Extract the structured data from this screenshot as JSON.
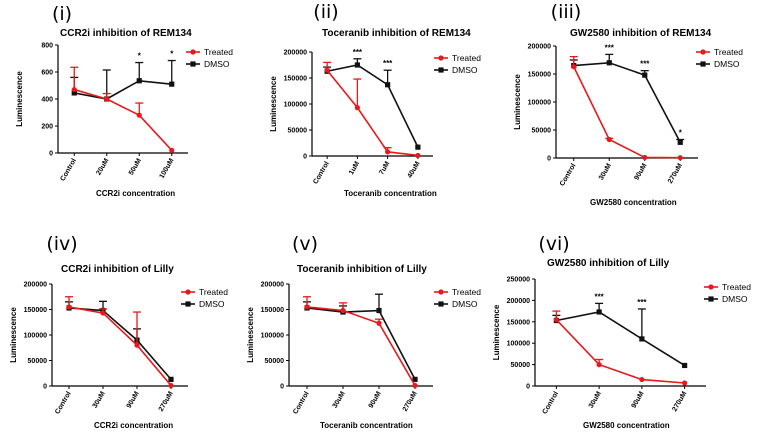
{
  "figure": {
    "colors": {
      "treated": "#e8191c",
      "dmso": "#111111",
      "axis": "#000000"
    }
  },
  "chart_data": [
    {
      "panel": "(i)",
      "type": "line",
      "title": "CCR2i inhibition of REM134",
      "xlabel": "CCR2i concentration",
      "ylabel": "Luminescence",
      "categories": [
        "Control",
        "20uM",
        "50uM",
        "100uM"
      ],
      "ylim": [
        0,
        800
      ],
      "yticks": [
        0,
        200,
        400,
        600,
        800
      ],
      "series": [
        {
          "name": "Treated",
          "values": [
            470,
            400,
            280,
            20
          ],
          "err": [
            165,
            40,
            90,
            0
          ]
        },
        {
          "name": "DMSO",
          "values": [
            445,
            400,
            535,
            510
          ],
          "err": [
            115,
            215,
            135,
            175
          ]
        }
      ],
      "annotations": [
        "",
        "",
        "*",
        "*"
      ]
    },
    {
      "panel": "(ii)",
      "type": "line",
      "title": "Toceranib inhibition of REM134",
      "xlabel": "Toceranib concentration",
      "ylabel": "Luminescence",
      "categories": [
        "Control",
        "1uM",
        "7uM",
        "40uM"
      ],
      "ylim": [
        0,
        200000
      ],
      "yticks": [
        0,
        50000,
        100000,
        150000,
        200000
      ],
      "series": [
        {
          "name": "Treated",
          "values": [
            165000,
            93000,
            8000,
            1000
          ],
          "err": [
            15000,
            55000,
            8000,
            0
          ]
        },
        {
          "name": "DMSO",
          "values": [
            163000,
            175000,
            137000,
            17000
          ],
          "err": [
            8000,
            12000,
            28000,
            0
          ]
        }
      ],
      "annotations": [
        "",
        "***",
        "***",
        ""
      ]
    },
    {
      "panel": "(iii)",
      "type": "line",
      "title": "GW2580 inhibition of REM134",
      "xlabel": "GW2580 concentration",
      "ylabel": "Luminescence",
      "categories": [
        "Control",
        "30uM",
        "90uM",
        "270uM"
      ],
      "ylim": [
        0,
        200000
      ],
      "yticks": [
        0,
        50000,
        100000,
        150000,
        200000
      ],
      "series": [
        {
          "name": "Treated",
          "values": [
            163000,
            33000,
            1000,
            500
          ],
          "err": [
            18000,
            2000,
            0,
            0
          ]
        },
        {
          "name": "DMSO",
          "values": [
            165000,
            170000,
            148000,
            28000
          ],
          "err": [
            10000,
            15000,
            8000,
            5000
          ]
        }
      ],
      "annotations": [
        "",
        "***",
        "***",
        "*"
      ]
    },
    {
      "panel": "(iv)",
      "type": "line",
      "title": "CCR2i inhibition of Lilly",
      "xlabel": "CCR2i concentration",
      "ylabel": "Luminescence",
      "categories": [
        "Control",
        "30uM",
        "90uM",
        "270uM"
      ],
      "ylim": [
        0,
        200000
      ],
      "yticks": [
        0,
        50000,
        100000,
        150000,
        200000
      ],
      "series": [
        {
          "name": "Treated",
          "values": [
            155000,
            143000,
            80000,
            1000
          ],
          "err": [
            20000,
            8000,
            65000,
            0
          ]
        },
        {
          "name": "DMSO",
          "values": [
            153000,
            148000,
            90000,
            13000
          ],
          "err": [
            12000,
            18000,
            22000,
            0
          ]
        }
      ],
      "annotations": [
        "",
        "",
        "",
        ""
      ]
    },
    {
      "panel": "(v)",
      "type": "line",
      "title": "Toceranib inhibition of Lilly",
      "xlabel": "Toceranib concentration",
      "ylabel": "Luminescence",
      "categories": [
        "Control",
        "30uM",
        "90uM",
        "270uM"
      ],
      "ylim": [
        0,
        200000
      ],
      "yticks": [
        0,
        50000,
        100000,
        150000,
        200000
      ],
      "series": [
        {
          "name": "Treated",
          "values": [
            155000,
            148000,
            123000,
            1000
          ],
          "err": [
            20000,
            15000,
            8000,
            0
          ]
        },
        {
          "name": "DMSO",
          "values": [
            153000,
            145000,
            148000,
            13000
          ],
          "err": [
            12000,
            12000,
            32000,
            0
          ]
        }
      ],
      "annotations": [
        "",
        "",
        "",
        ""
      ]
    },
    {
      "panel": "(vi)",
      "type": "line",
      "title": "GW2580 inhibition of Lilly",
      "xlabel": "GW2580 concentration",
      "ylabel": "Luminescence",
      "categories": [
        "Control",
        "30uM",
        "90uM",
        "270uM"
      ],
      "ylim": [
        0,
        250000
      ],
      "yticks": [
        0,
        50000,
        100000,
        150000,
        200000,
        250000
      ],
      "series": [
        {
          "name": "Treated",
          "values": [
            155000,
            50000,
            15000,
            7000
          ],
          "err": [
            20000,
            12000,
            0,
            0
          ]
        },
        {
          "name": "DMSO",
          "values": [
            153000,
            173000,
            110000,
            48000
          ],
          "err": [
            12000,
            20000,
            70000,
            0
          ]
        }
      ],
      "annotations": [
        "",
        "***",
        "***",
        ""
      ]
    }
  ]
}
